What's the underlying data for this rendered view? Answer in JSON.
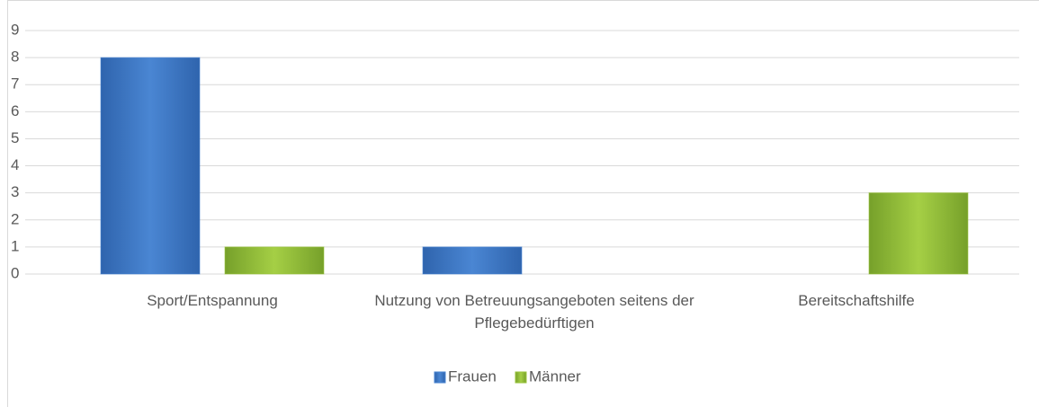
{
  "chart_data": {
    "type": "bar",
    "categories": [
      "Sport/Entspannung",
      "Nutzung von Betreuungsangeboten seitens der Pflegebedürftigen",
      "Bereitschaftshilfe"
    ],
    "series": [
      {
        "name": "Frauen",
        "color": "#4a86d3",
        "values": [
          8,
          1,
          0
        ]
      },
      {
        "name": "Männer",
        "color": "#9bc53d",
        "values": [
          1,
          0,
          3
        ]
      }
    ],
    "ylim": [
      0,
      9
    ],
    "yticks": [
      0,
      1,
      2,
      3,
      4,
      5,
      6,
      7,
      8,
      9
    ],
    "grid": true,
    "legend": "bottom"
  }
}
